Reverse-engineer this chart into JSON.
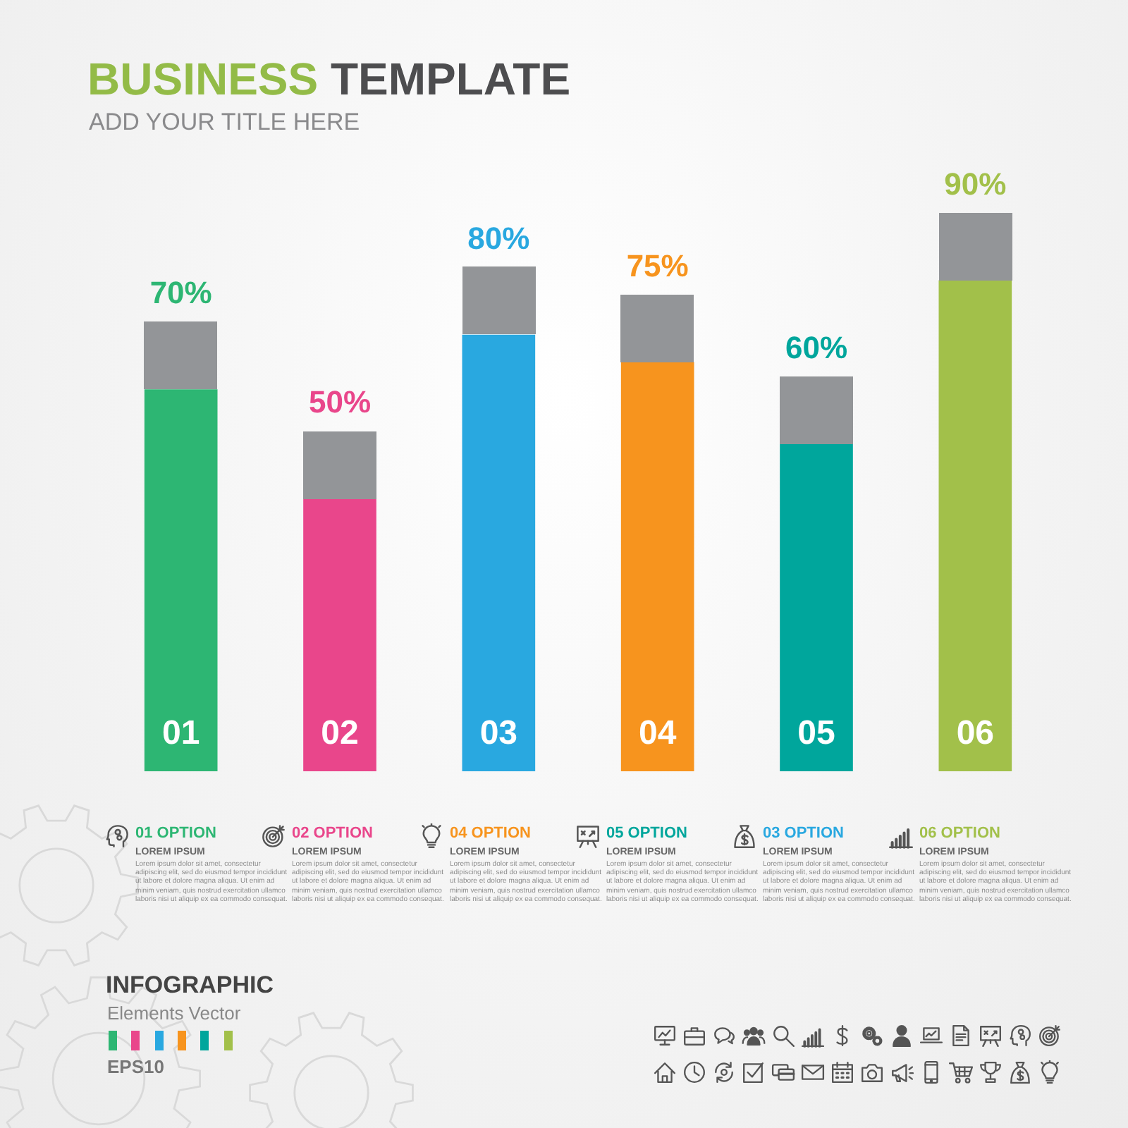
{
  "chart_data": {
    "type": "bar",
    "title": "BUSINESS TEMPLATE",
    "subtitle": "ADD YOUR TITLE HERE",
    "categories": [
      "01",
      "02",
      "03",
      "04",
      "05",
      "06"
    ],
    "values": [
      70,
      50,
      80,
      75,
      60,
      90
    ],
    "colors": [
      "#2db673",
      "#e9468b",
      "#29a8e0",
      "#f7941e",
      "#00a69c",
      "#a2c04a"
    ],
    "value_labels": [
      "70%",
      "50%",
      "80%",
      "75%",
      "60%",
      "90%"
    ],
    "annotations": [
      "01 OPTION",
      "LOREM IPSUM",
      "Lorem ipsum dolor sit amet, consectetur adipiscing elit, sed do eiusmod tempor incididunt ut labore et dolore magna aliqua. Ut enim ad minim veniam, quis nostrud exercitation ullamco laboris nisi ut aliquip ex ea commodo consequat.",
      "02 OPTION",
      "LOREM IPSUM",
      "Lorem ipsum dolor sit amet, consectetur adipiscing elit, sed do eiusmod tempor incididunt ut labore et dolore magna aliqua. Ut enim ad minim veniam, quis nostrud exercitation ullamco laboris nisi ut aliquip ex ea commodo consequat.",
      "04 OPTION",
      "LOREM IPSUM",
      "Lorem ipsum dolor sit amet, consectetur adipiscing elit, sed do eiusmod tempor incididunt ut labore et dolore magna aliqua. Ut enim ad minim veniam, quis nostrud exercitation ullamco laboris nisi ut aliquip ex ea commodo consequat.",
      "05 OPTION",
      "LOREM IPSUM",
      "Lorem ipsum dolor sit amet, consectetur adipiscing elit, sed do eiusmod tempor incididunt ut labore et dolore magna aliqua. Ut enim ad minim veniam, quis nostrud exercitation ullamco laboris nisi ut aliquip ex ea commodo consequat.",
      "03 OPTION",
      "LOREM IPSUM",
      "Lorem ipsum dolor sit amet, consectetur adipiscing elit, sed do eiusmod tempor incididunt ut labore et dolore magna aliqua. Ut enim ad minim veniam, quis nostrud exercitation ullamco laboris nisi ut aliquip ex ea commodo consequat.",
      "06 OPTION",
      "LOREM IPSUM",
      "Lorem ipsum dolor sit amet, consectetur adipiscing elit, sed do eiusmod tempor incididunt ut labore et dolore magna aliqua. Ut enim ad minim veniam, quis nostrud exercitation ullamco laboris nisi ut aliquip ex ea commodo consequat.",
      "INFOGRAPHIC",
      "Elements Vector",
      "EPS10"
    ]
  }
}
